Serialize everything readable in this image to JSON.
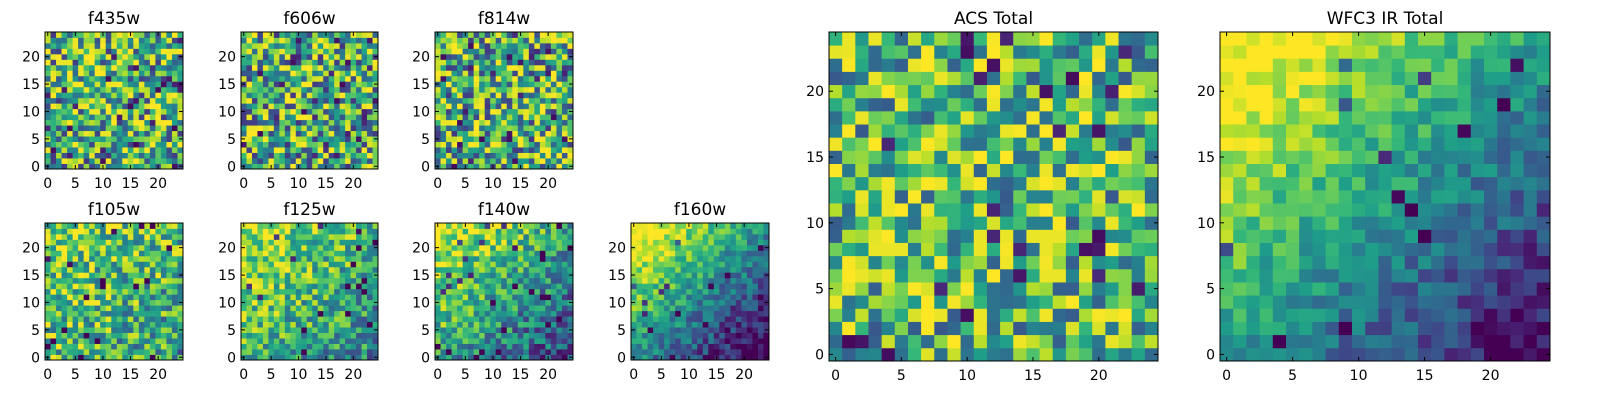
{
  "figure": {
    "colormap": "viridis",
    "colormap_stops": [
      "#440154",
      "#482878",
      "#3e4989",
      "#31688e",
      "#26828e",
      "#1f9e89",
      "#35b779",
      "#6ece58",
      "#b5de2b",
      "#fde725"
    ]
  },
  "chart_data": [
    {
      "type": "heatmap",
      "title": "f435w",
      "grid_size": 25,
      "xlim": [
        0,
        24
      ],
      "ylim": [
        0,
        24
      ],
      "x_ticks": [
        0,
        5,
        10,
        15,
        20
      ],
      "y_ticks": [
        0,
        5,
        10,
        15,
        20
      ],
      "pattern": "noise",
      "seed": 11,
      "level": 0.62,
      "spread": 0.5
    },
    {
      "type": "heatmap",
      "title": "f606w",
      "grid_size": 25,
      "xlim": [
        0,
        24
      ],
      "ylim": [
        0,
        24
      ],
      "x_ticks": [
        0,
        5,
        10,
        15,
        20
      ],
      "y_ticks": [
        0,
        5,
        10,
        15,
        20
      ],
      "pattern": "noise",
      "seed": 23,
      "level": 0.62,
      "spread": 0.5
    },
    {
      "type": "heatmap",
      "title": "f814w",
      "grid_size": 25,
      "xlim": [
        0,
        24
      ],
      "ylim": [
        0,
        24
      ],
      "x_ticks": [
        0,
        5,
        10,
        15,
        20
      ],
      "y_ticks": [
        0,
        5,
        10,
        15,
        20
      ],
      "pattern": "noise",
      "seed": 37,
      "level": 0.62,
      "spread": 0.5
    },
    {
      "type": "heatmap",
      "title": "f105w",
      "grid_size": 25,
      "xlim": [
        0,
        24
      ],
      "ylim": [
        0,
        24
      ],
      "x_ticks": [
        0,
        5,
        10,
        15,
        20
      ],
      "y_ticks": [
        0,
        5,
        10,
        15,
        20
      ],
      "pattern": "gradient",
      "seed": 41,
      "level": 0.66,
      "spread": 0.35,
      "slope": 0.12
    },
    {
      "type": "heatmap",
      "title": "f125w",
      "grid_size": 25,
      "xlim": [
        0,
        24
      ],
      "ylim": [
        0,
        24
      ],
      "x_ticks": [
        0,
        5,
        10,
        15,
        20
      ],
      "y_ticks": [
        0,
        5,
        10,
        15,
        20
      ],
      "pattern": "gradient",
      "seed": 53,
      "level": 0.66,
      "spread": 0.3,
      "slope": 0.22
    },
    {
      "type": "heatmap",
      "title": "f140w",
      "grid_size": 25,
      "xlim": [
        0,
        24
      ],
      "ylim": [
        0,
        24
      ],
      "x_ticks": [
        0,
        5,
        10,
        15,
        20
      ],
      "y_ticks": [
        0,
        5,
        10,
        15,
        20
      ],
      "pattern": "gradient",
      "seed": 67,
      "level": 0.58,
      "spread": 0.28,
      "slope": 0.38
    },
    {
      "type": "heatmap",
      "title": "f160w",
      "grid_size": 25,
      "xlim": [
        0,
        24
      ],
      "ylim": [
        0,
        24
      ],
      "x_ticks": [
        0,
        5,
        10,
        15,
        20
      ],
      "y_ticks": [
        0,
        5,
        10,
        15,
        20
      ],
      "pattern": "gradient",
      "seed": 79,
      "level": 0.5,
      "spread": 0.2,
      "slope": 0.6
    },
    {
      "type": "heatmap",
      "title": "ACS Total",
      "grid_size": 25,
      "xlim": [
        0,
        24
      ],
      "ylim": [
        0,
        24
      ],
      "x_ticks": [
        0,
        5,
        10,
        15,
        20
      ],
      "y_ticks": [
        0,
        5,
        10,
        15,
        20
      ],
      "pattern": "noise",
      "seed": 97,
      "level": 0.66,
      "spread": 0.42
    },
    {
      "type": "heatmap",
      "title": "WFC3 IR Total",
      "grid_size": 25,
      "xlim": [
        0,
        24
      ],
      "ylim": [
        0,
        24
      ],
      "x_ticks": [
        0,
        5,
        10,
        15,
        20
      ],
      "y_ticks": [
        0,
        5,
        10,
        15,
        20
      ],
      "pattern": "gradient",
      "seed": 131,
      "level": 0.55,
      "spread": 0.16,
      "slope": 0.55
    }
  ]
}
